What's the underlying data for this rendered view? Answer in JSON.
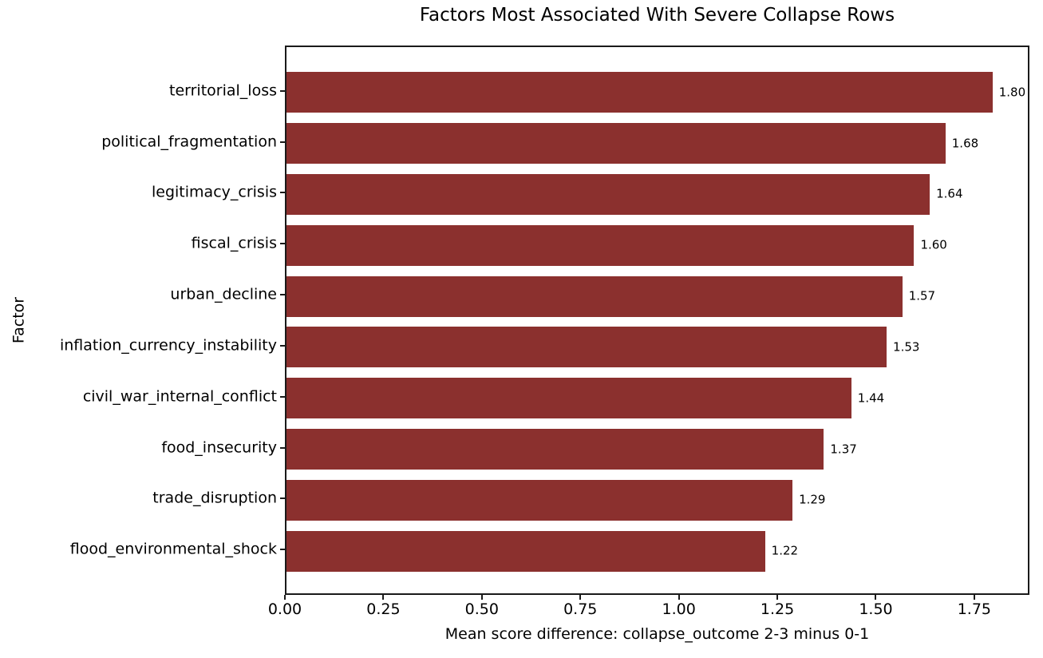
{
  "chart_data": {
    "type": "bar",
    "orientation": "horizontal",
    "title": "Factors Most Associated With Severe Collapse Rows",
    "xlabel": "Mean score difference: collapse_outcome 2-3 minus 0-1",
    "ylabel": "Factor",
    "categories": [
      "territorial_loss",
      "political_fragmentation",
      "legitimacy_crisis",
      "fiscal_crisis",
      "urban_decline",
      "inflation_currency_instability",
      "civil_war_internal_conflict",
      "food_insecurity",
      "trade_disruption",
      "flood_environmental_shock"
    ],
    "values": [
      1.8,
      1.68,
      1.64,
      1.6,
      1.57,
      1.53,
      1.44,
      1.37,
      1.29,
      1.22
    ],
    "value_labels": [
      "1.80",
      "1.68",
      "1.64",
      "1.60",
      "1.57",
      "1.53",
      "1.44",
      "1.37",
      "1.29",
      "1.22"
    ],
    "xlim": [
      0,
      1.89
    ],
    "xticks": [
      {
        "label": "0.00",
        "value": 0.0
      },
      {
        "label": "0.25",
        "value": 0.25
      },
      {
        "label": "0.50",
        "value": 0.5
      },
      {
        "label": "0.75",
        "value": 0.75
      },
      {
        "label": "1.00",
        "value": 1.0
      },
      {
        "label": "1.25",
        "value": 1.25
      },
      {
        "label": "1.50",
        "value": 1.5
      },
      {
        "label": "1.75",
        "value": 1.75
      }
    ],
    "grid": false,
    "legend": null,
    "bar_color": "#8b302e",
    "spine_color": "#1a1a1a",
    "text_color": "#000000",
    "background_color": "#ffffff"
  }
}
